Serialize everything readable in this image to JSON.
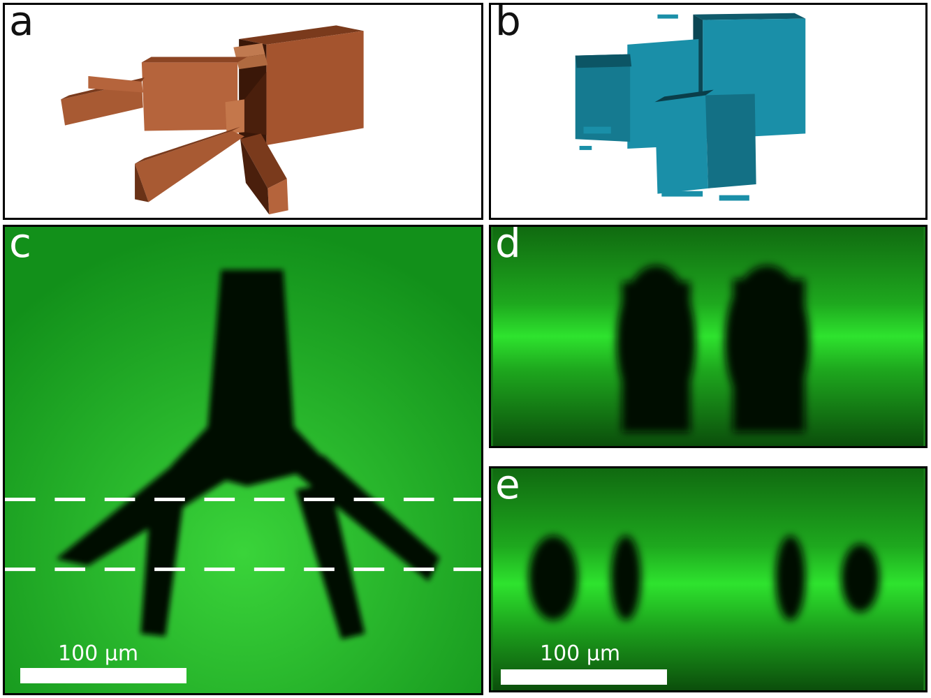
{
  "panels": {
    "a": {
      "label": "a",
      "render_color": "#b5643c"
    },
    "b": {
      "label": "b",
      "render_color": "#1a8fa8"
    },
    "c": {
      "label": "c",
      "background_color": "#1fb31f",
      "scale_label": "100 µm"
    },
    "d": {
      "label": "d",
      "background_color": "#1a7a1a"
    },
    "e": {
      "label": "e",
      "background_color": "#1a7a1a",
      "scale_label": "100 µm"
    }
  }
}
